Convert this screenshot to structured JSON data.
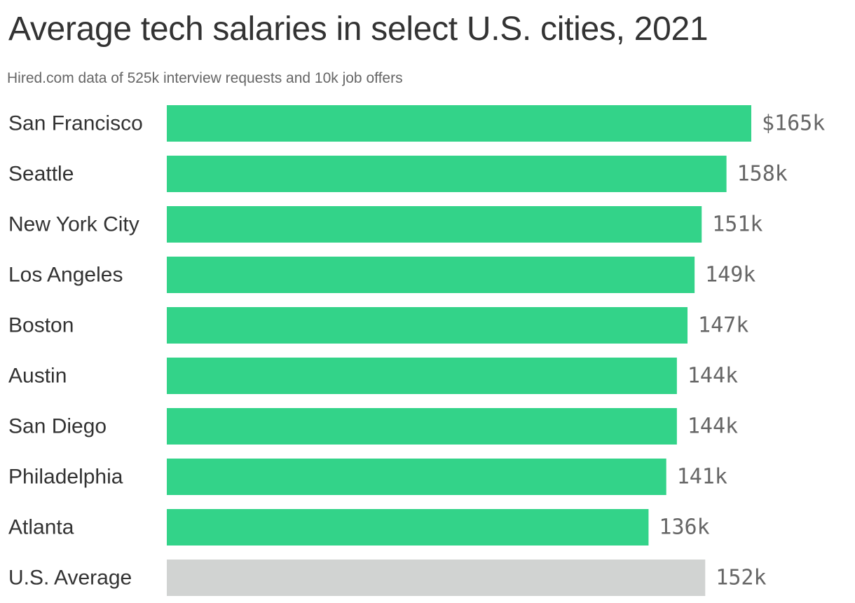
{
  "chart_data": {
    "type": "bar",
    "orientation": "horizontal",
    "title": "Average tech salaries in select U.S. cities, 2021",
    "subtitle": "Hired.com data of 525k interview requests and 10k job offers",
    "categories": [
      "San Francisco",
      "Seattle",
      "New York City",
      "Los Angeles",
      "Boston",
      "Austin",
      "San Diego",
      "Philadelphia",
      "Atlanta",
      "U.S. Average"
    ],
    "values": [
      165,
      158,
      151,
      149,
      147,
      144,
      144,
      141,
      136,
      152
    ],
    "value_labels": [
      "$165k",
      "158k",
      "151k",
      "149k",
      "147k",
      "144k",
      "144k",
      "141k",
      "136k",
      "152k"
    ],
    "units": "thousand USD",
    "xlim": [
      0,
      165
    ],
    "grid": false,
    "legend": "none",
    "colors": {
      "bar": "#33d389",
      "highlight_bar": "#d1d3d2",
      "highlight_category": "U.S. Average"
    }
  }
}
